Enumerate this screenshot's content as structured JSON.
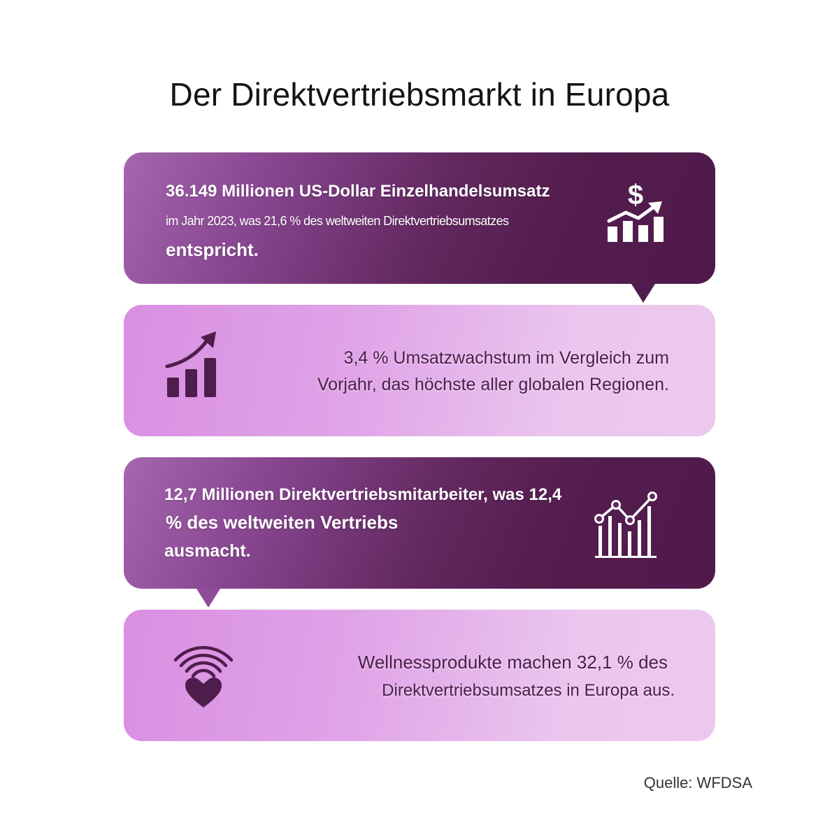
{
  "title": "Der Direktvertriebsmarkt in Europa",
  "cards": [
    {
      "line1": "36.149 Millionen US-Dollar Einzelhandelsumsatz",
      "line2": "im Jahr 2023, was 21,6 % des weltweiten Direktvertriebsumsatzes",
      "line3": "entspricht.",
      "icon": "dollar-bar-chart-icon"
    },
    {
      "line1": "3,4 % Umsatzwachstum im Vergleich zum",
      "line2": "Vorjahr, das höchste aller globalen Regionen.",
      "icon": "growth-chart-icon"
    },
    {
      "line1": "12,7 Millionen Direktvertriebsmitarbeiter, was 12,4",
      "line2": "% des weltweiten Vertriebs",
      "line3": "ausmacht.",
      "icon": "line-bar-chart-icon"
    },
    {
      "line1": "Wellnessprodukte machen 32,1 % des",
      "line2": "Direktvertriebsumsatzes in Europa aus.",
      "icon": "heart-signal-icon"
    }
  ],
  "source": "Quelle: WFDSA",
  "colors": {
    "dark_card": "#531d4e",
    "light_card": "#e0a4e8",
    "light_text": "#4a1f48"
  }
}
